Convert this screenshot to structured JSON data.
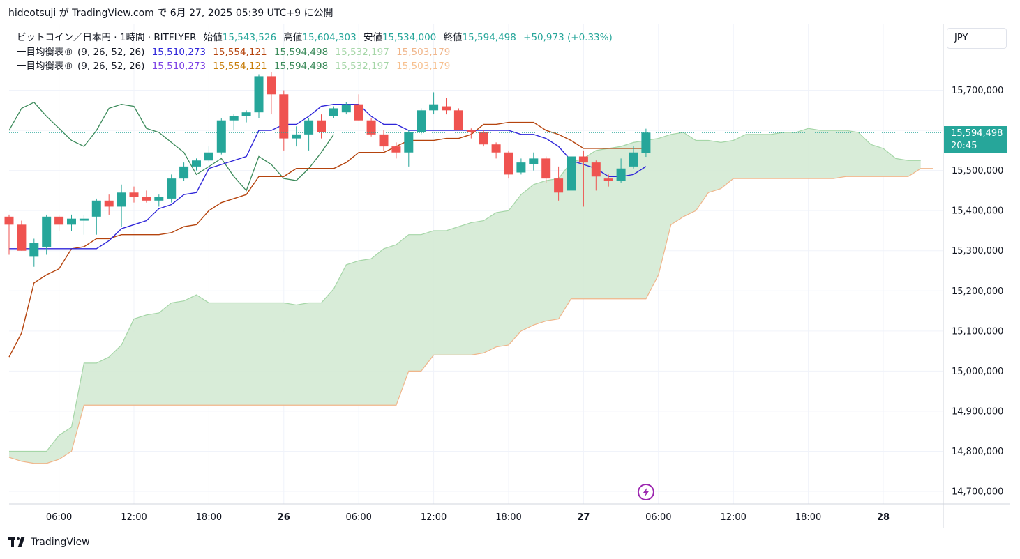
{
  "header": {
    "text": "hideotsuji が TradingView.com で 6月 27, 2025 05:39 UTC+9 に公開"
  },
  "legend": {
    "symbol": "ビットコイン／日本円 · 1時間 · BITFLYER",
    "open_label": "始値",
    "open": "15,543,526",
    "high_label": "高値",
    "high": "15,604,303",
    "low_label": "安値",
    "low": "15,534,000",
    "close_label": "終値",
    "close": "15,594,498",
    "change": "+50,973 (+0.33%)",
    "ichimoku1": {
      "name": "一目均衡表®",
      "params": "(9, 26, 52, 26)",
      "v1": "15,510,273",
      "v2": "15,554,121",
      "v3": "15,594,498",
      "v4": "15,532,197",
      "v5": "15,503,179"
    },
    "ichimoku2": {
      "name": "一目均衡表®",
      "params": "(9, 26, 52, 26)",
      "v1": "15,510,273",
      "v2": "15,554,121",
      "v3": "15,594,498",
      "v4": "15,532,197",
      "v5": "15,503,179"
    }
  },
  "price_scale": {
    "currency": "JPY"
  },
  "last_price": {
    "price": "15,594,498",
    "countdown": "20:45"
  },
  "footer": {
    "brand": "TradingView"
  },
  "colors": {
    "up": "#26a69a",
    "down": "#ef5350",
    "tenkan": "#2f26d9",
    "kijun": "#b5440e",
    "chikou": "#3b8a5a",
    "span_a": "#a5d6a7",
    "span_b": "#f0b58a",
    "cloud": "#d4ead4"
  },
  "chart_data": {
    "type": "candlestick",
    "ylim": [
      14680000,
      15800000
    ],
    "y_ticks": [
      14700000,
      14800000,
      14900000,
      15000000,
      15100000,
      15200000,
      15300000,
      15400000,
      15500000,
      15600000,
      15700000
    ],
    "y_tick_labels": [
      "14,700,000",
      "14,800,000",
      "14,900,000",
      "15,000,000",
      "15,100,000",
      "15,200,000",
      "15,300,000",
      "15,400,000",
      "15,500,000",
      "15,600,000",
      "15,700,000"
    ],
    "x_ticks": [
      {
        "label": "06:00",
        "bar": 4
      },
      {
        "label": "12:00",
        "bar": 10
      },
      {
        "label": "18:00",
        "bar": 16
      },
      {
        "label": "26",
        "bar": 22,
        "bold": true
      },
      {
        "label": "06:00",
        "bar": 28
      },
      {
        "label": "12:00",
        "bar": 34
      },
      {
        "label": "18:00",
        "bar": 40
      },
      {
        "label": "27",
        "bar": 46,
        "bold": true
      },
      {
        "label": "06:00",
        "bar": 52
      },
      {
        "label": "12:00",
        "bar": 58
      },
      {
        "label": "18:00",
        "bar": 64
      },
      {
        "label": "28",
        "bar": 70,
        "bold": true
      }
    ],
    "candles": [
      [
        15385000,
        15390000,
        15290000,
        15365000
      ],
      [
        15365000,
        15375000,
        15300000,
        15300000
      ],
      [
        15285000,
        15330000,
        15260000,
        15320000
      ],
      [
        15310000,
        15390000,
        15290000,
        15385000
      ],
      [
        15385000,
        15390000,
        15350000,
        15365000
      ],
      [
        15365000,
        15390000,
        15350000,
        15380000
      ],
      [
        15375000,
        15390000,
        15340000,
        15380000
      ],
      [
        15385000,
        15430000,
        15340000,
        15425000
      ],
      [
        15425000,
        15440000,
        15390000,
        15410000
      ],
      [
        15410000,
        15465000,
        15360000,
        15445000
      ],
      [
        15445000,
        15460000,
        15420000,
        15435000
      ],
      [
        15435000,
        15450000,
        15420000,
        15425000
      ],
      [
        15425000,
        15440000,
        15410000,
        15435000
      ],
      [
        15430000,
        15490000,
        15420000,
        15480000
      ],
      [
        15480000,
        15520000,
        15475000,
        15510000
      ],
      [
        15510000,
        15530000,
        15500000,
        15525000
      ],
      [
        15525000,
        15560000,
        15520000,
        15545000
      ],
      [
        15545000,
        15630000,
        15540000,
        15625000
      ],
      [
        15625000,
        15640000,
        15600000,
        15635000
      ],
      [
        15635000,
        15650000,
        15620000,
        15645000
      ],
      [
        15645000,
        15740000,
        15630000,
        15735000
      ],
      [
        15735000,
        15745000,
        15640000,
        15690000
      ],
      [
        15690000,
        15700000,
        15550000,
        15580000
      ],
      [
        15580000,
        15610000,
        15560000,
        15590000
      ],
      [
        15590000,
        15630000,
        15550000,
        15625000
      ],
      [
        15625000,
        15640000,
        15580000,
        15595000
      ],
      [
        15635000,
        15660000,
        15630000,
        15655000
      ],
      [
        15645000,
        15670000,
        15640000,
        15665000
      ],
      [
        15665000,
        15690000,
        15625000,
        15625000
      ],
      [
        15625000,
        15630000,
        15585000,
        15590000
      ],
      [
        15590000,
        15600000,
        15550000,
        15560000
      ],
      [
        15560000,
        15570000,
        15530000,
        15545000
      ],
      [
        15545000,
        15600000,
        15510000,
        15595000
      ],
      [
        15595000,
        15655000,
        15590000,
        15650000
      ],
      [
        15650000,
        15695000,
        15640000,
        15665000
      ],
      [
        15660000,
        15680000,
        15640000,
        15650000
      ],
      [
        15650000,
        15655000,
        15600000,
        15600000
      ],
      [
        15600000,
        15605000,
        15580000,
        15595000
      ],
      [
        15595000,
        15600000,
        15560000,
        15565000
      ],
      [
        15565000,
        15570000,
        15530000,
        15545000
      ],
      [
        15545000,
        15550000,
        15480000,
        15490000
      ],
      [
        15495000,
        15530000,
        15490000,
        15520000
      ],
      [
        15515000,
        15545000,
        15500000,
        15530000
      ],
      [
        15530000,
        15535000,
        15470000,
        15480000
      ],
      [
        15480000,
        15510000,
        15425000,
        15445000
      ],
      [
        15450000,
        15565000,
        15445000,
        15535000
      ],
      [
        15535000,
        15550000,
        15410000,
        15520000
      ],
      [
        15520000,
        15525000,
        15450000,
        15485000
      ],
      [
        15480000,
        15490000,
        15460000,
        15475000
      ],
      [
        15475000,
        15530000,
        15470000,
        15505000
      ],
      [
        15510000,
        15560000,
        15505000,
        15545000
      ],
      [
        15543526,
        15604303,
        15534000,
        15594498
      ]
    ],
    "tenkan": [
      [
        0,
        15305000
      ],
      [
        7,
        15305000
      ],
      [
        8,
        15325000
      ],
      [
        9,
        15355000
      ],
      [
        10,
        15365000
      ],
      [
        11,
        15375000
      ],
      [
        12,
        15405000
      ],
      [
        13,
        15415000
      ],
      [
        14,
        15440000
      ],
      [
        15,
        15445000
      ],
      [
        16,
        15505000
      ],
      [
        17,
        15515000
      ],
      [
        18,
        15525000
      ],
      [
        19,
        15535000
      ],
      [
        20,
        15600000
      ],
      [
        21,
        15600000
      ],
      [
        22,
        15615000
      ],
      [
        23,
        15615000
      ],
      [
        24,
        15635000
      ],
      [
        25,
        15660000
      ],
      [
        26,
        15665000
      ],
      [
        27,
        15665000
      ],
      [
        28,
        15665000
      ],
      [
        29,
        15635000
      ],
      [
        30,
        15615000
      ],
      [
        31,
        15615000
      ],
      [
        32,
        15600000
      ],
      [
        33,
        15600000
      ],
      [
        34,
        15600000
      ],
      [
        35,
        15600000
      ],
      [
        36,
        15600000
      ],
      [
        37,
        15600000
      ],
      [
        38,
        15600000
      ],
      [
        39,
        15600000
      ],
      [
        40,
        15600000
      ],
      [
        41,
        15590000
      ],
      [
        42,
        15590000
      ],
      [
        43,
        15580000
      ],
      [
        44,
        15560000
      ],
      [
        45,
        15525000
      ],
      [
        46,
        15515000
      ],
      [
        47,
        15505000
      ],
      [
        48,
        15485000
      ],
      [
        49,
        15485000
      ],
      [
        50,
        15490000
      ],
      [
        51,
        15510000
      ]
    ],
    "kijun": [
      [
        0,
        15035000
      ],
      [
        1,
        15095000
      ],
      [
        2,
        15220000
      ],
      [
        3,
        15240000
      ],
      [
        4,
        15255000
      ],
      [
        5,
        15305000
      ],
      [
        6,
        15310000
      ],
      [
        7,
        15330000
      ],
      [
        8,
        15330000
      ],
      [
        9,
        15340000
      ],
      [
        10,
        15340000
      ],
      [
        11,
        15340000
      ],
      [
        12,
        15340000
      ],
      [
        13,
        15345000
      ],
      [
        14,
        15360000
      ],
      [
        15,
        15365000
      ],
      [
        16,
        15400000
      ],
      [
        17,
        15420000
      ],
      [
        18,
        15430000
      ],
      [
        19,
        15440000
      ],
      [
        20,
        15485000
      ],
      [
        21,
        15485000
      ],
      [
        22,
        15485000
      ],
      [
        23,
        15505000
      ],
      [
        24,
        15505000
      ],
      [
        25,
        15505000
      ],
      [
        26,
        15505000
      ],
      [
        27,
        15520000
      ],
      [
        28,
        15545000
      ],
      [
        29,
        15545000
      ],
      [
        30,
        15545000
      ],
      [
        31,
        15560000
      ],
      [
        32,
        15575000
      ],
      [
        33,
        15575000
      ],
      [
        34,
        15575000
      ],
      [
        35,
        15580000
      ],
      [
        36,
        15580000
      ],
      [
        37,
        15590000
      ],
      [
        38,
        15615000
      ],
      [
        39,
        15615000
      ],
      [
        40,
        15620000
      ],
      [
        41,
        15620000
      ],
      [
        42,
        15620000
      ],
      [
        43,
        15600000
      ],
      [
        44,
        15590000
      ],
      [
        45,
        15575000
      ],
      [
        46,
        15555000
      ],
      [
        47,
        15555000
      ],
      [
        48,
        15555000
      ],
      [
        49,
        15555000
      ],
      [
        50,
        15555000
      ],
      [
        51,
        15555000
      ]
    ],
    "chikou": [
      [
        0,
        15600000
      ],
      [
        1,
        15655000
      ],
      [
        2,
        15670000
      ],
      [
        3,
        15635000
      ],
      [
        4,
        15605000
      ],
      [
        5,
        15575000
      ],
      [
        6,
        15560000
      ],
      [
        7,
        15600000
      ],
      [
        8,
        15655000
      ],
      [
        9,
        15665000
      ],
      [
        10,
        15660000
      ],
      [
        11,
        15605000
      ],
      [
        12,
        15595000
      ],
      [
        13,
        15570000
      ],
      [
        14,
        15545000
      ],
      [
        15,
        15490000
      ],
      [
        16,
        15510000
      ],
      [
        17,
        15530000
      ],
      [
        18,
        15485000
      ],
      [
        19,
        15450000
      ],
      [
        20,
        15535000
      ],
      [
        21,
        15515000
      ],
      [
        22,
        15480000
      ],
      [
        23,
        15475000
      ],
      [
        24,
        15505000
      ],
      [
        25,
        15545000
      ],
      [
        26,
        15590000
      ]
    ],
    "span_a": [
      [
        0,
        14800000
      ],
      [
        1,
        14800000
      ],
      [
        2,
        14800000
      ],
      [
        3,
        14800000
      ],
      [
        4,
        14840000
      ],
      [
        5,
        14860000
      ],
      [
        6,
        15020000
      ],
      [
        7,
        15020000
      ],
      [
        8,
        15035000
      ],
      [
        9,
        15065000
      ],
      [
        10,
        15130000
      ],
      [
        11,
        15140000
      ],
      [
        12,
        15145000
      ],
      [
        13,
        15170000
      ],
      [
        14,
        15175000
      ],
      [
        15,
        15190000
      ],
      [
        16,
        15170000
      ],
      [
        17,
        15170000
      ],
      [
        18,
        15170000
      ],
      [
        19,
        15170000
      ],
      [
        20,
        15170000
      ],
      [
        21,
        15170000
      ],
      [
        22,
        15170000
      ],
      [
        23,
        15165000
      ],
      [
        24,
        15170000
      ],
      [
        25,
        15170000
      ],
      [
        26,
        15205000
      ],
      [
        27,
        15265000
      ],
      [
        28,
        15275000
      ],
      [
        29,
        15280000
      ],
      [
        30,
        15305000
      ],
      [
        31,
        15315000
      ],
      [
        32,
        15340000
      ],
      [
        33,
        15340000
      ],
      [
        34,
        15350000
      ],
      [
        35,
        15350000
      ],
      [
        36,
        15360000
      ],
      [
        37,
        15370000
      ],
      [
        38,
        15375000
      ],
      [
        39,
        15395000
      ],
      [
        40,
        15400000
      ],
      [
        41,
        15440000
      ],
      [
        42,
        15465000
      ],
      [
        43,
        15475000
      ],
      [
        44,
        15480000
      ],
      [
        45,
        15520000
      ],
      [
        46,
        15530000
      ],
      [
        47,
        15550000
      ],
      [
        48,
        15555000
      ],
      [
        49,
        15560000
      ],
      [
        50,
        15570000
      ],
      [
        51,
        15575000
      ],
      [
        52,
        15580000
      ],
      [
        53,
        15590000
      ],
      [
        54,
        15595000
      ],
      [
        55,
        15575000
      ],
      [
        56,
        15575000
      ],
      [
        57,
        15570000
      ],
      [
        58,
        15575000
      ],
      [
        59,
        15590000
      ],
      [
        60,
        15590000
      ],
      [
        61,
        15590000
      ],
      [
        62,
        15595000
      ],
      [
        63,
        15595000
      ],
      [
        64,
        15605000
      ],
      [
        65,
        15600000
      ],
      [
        66,
        15600000
      ],
      [
        67,
        15600000
      ],
      [
        68,
        15595000
      ],
      [
        69,
        15565000
      ],
      [
        70,
        15555000
      ],
      [
        71,
        15530000
      ],
      [
        72,
        15525000
      ],
      [
        73,
        15525000
      ]
    ],
    "span_b": [
      [
        0,
        14785000
      ],
      [
        1,
        14775000
      ],
      [
        2,
        14770000
      ],
      [
        3,
        14770000
      ],
      [
        4,
        14780000
      ],
      [
        5,
        14800000
      ],
      [
        6,
        14915000
      ],
      [
        7,
        14915000
      ],
      [
        8,
        14915000
      ],
      [
        9,
        14915000
      ],
      [
        10,
        14915000
      ],
      [
        11,
        14915000
      ],
      [
        12,
        14915000
      ],
      [
        13,
        14915000
      ],
      [
        14,
        14915000
      ],
      [
        15,
        14915000
      ],
      [
        16,
        14915000
      ],
      [
        17,
        14915000
      ],
      [
        18,
        14915000
      ],
      [
        19,
        14915000
      ],
      [
        20,
        14915000
      ],
      [
        21,
        14915000
      ],
      [
        22,
        14915000
      ],
      [
        23,
        14915000
      ],
      [
        24,
        14915000
      ],
      [
        25,
        14915000
      ],
      [
        26,
        14915000
      ],
      [
        27,
        14915000
      ],
      [
        28,
        14915000
      ],
      [
        29,
        14915000
      ],
      [
        30,
        14915000
      ],
      [
        31,
        14915000
      ],
      [
        32,
        15000000
      ],
      [
        33,
        15000000
      ],
      [
        34,
        15040000
      ],
      [
        35,
        15040000
      ],
      [
        36,
        15040000
      ],
      [
        37,
        15040000
      ],
      [
        38,
        15045000
      ],
      [
        39,
        15060000
      ],
      [
        40,
        15065000
      ],
      [
        41,
        15100000
      ],
      [
        42,
        15115000
      ],
      [
        43,
        15125000
      ],
      [
        44,
        15130000
      ],
      [
        45,
        15180000
      ],
      [
        46,
        15180000
      ],
      [
        47,
        15180000
      ],
      [
        48,
        15180000
      ],
      [
        49,
        15180000
      ],
      [
        50,
        15180000
      ],
      [
        51,
        15180000
      ],
      [
        52,
        15240000
      ],
      [
        53,
        15365000
      ],
      [
        54,
        15385000
      ],
      [
        55,
        15400000
      ],
      [
        56,
        15445000
      ],
      [
        57,
        15455000
      ],
      [
        58,
        15480000
      ],
      [
        59,
        15480000
      ],
      [
        60,
        15480000
      ],
      [
        61,
        15480000
      ],
      [
        62,
        15480000
      ],
      [
        63,
        15480000
      ],
      [
        64,
        15480000
      ],
      [
        65,
        15480000
      ],
      [
        66,
        15480000
      ],
      [
        67,
        15485000
      ],
      [
        68,
        15485000
      ],
      [
        69,
        15485000
      ],
      [
        70,
        15485000
      ],
      [
        71,
        15485000
      ],
      [
        72,
        15485000
      ],
      [
        73,
        15505000
      ],
      [
        74,
        15505000
      ]
    ]
  }
}
